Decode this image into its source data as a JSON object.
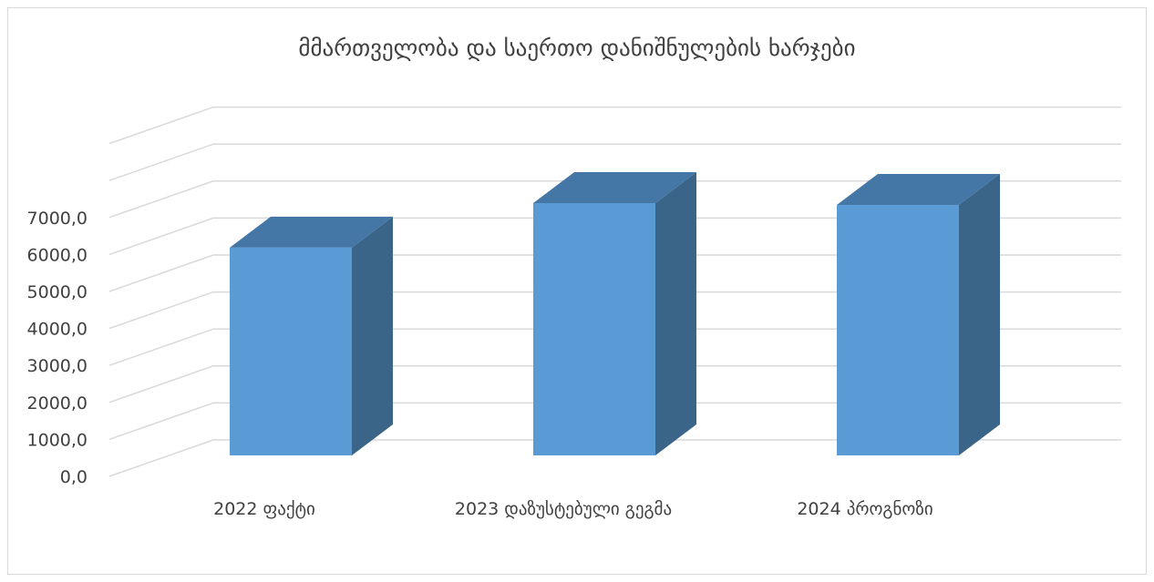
{
  "chart_data": {
    "type": "bar",
    "style": "3d-column",
    "title": "მმართველობა და საერთო დანიშნულების ხარჯები",
    "categories": [
      "2022 ფაქტი",
      "2023 დაზუსტებული გეგმა",
      "2024 პროგნოზი"
    ],
    "values": [
      5600,
      6800,
      6750
    ],
    "ylim": [
      0,
      9000
    ],
    "yticks": [
      "0,0",
      "1000,0",
      "2000,0",
      "3000,0",
      "4000,0",
      "5000,0",
      "6000,0",
      "7000,0"
    ],
    "grid": true,
    "legend": "none",
    "colors": {
      "bar_front": "#5b9bd5",
      "bar_top": "#4577a6",
      "bar_side": "#3a6488",
      "grid": "#d9d9d9",
      "text": "#404040"
    }
  }
}
